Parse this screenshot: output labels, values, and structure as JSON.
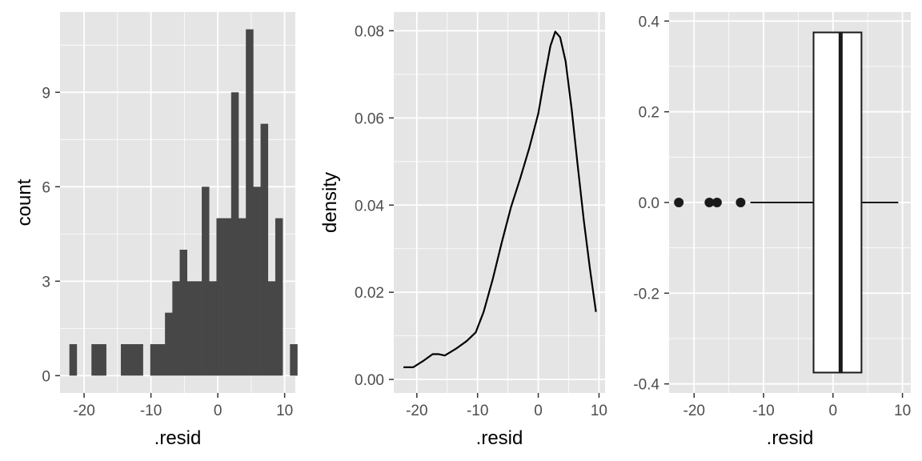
{
  "colors": {
    "panel_background": "#e5e5e5",
    "grid_line": "#ffffff",
    "bar_fill": "#474747",
    "line": "#000000",
    "box_fill": "#ffffff",
    "box_stroke": "#1a1a1a",
    "outlier": "#1a1a1a",
    "tick_text": "#4d4d4d"
  },
  "chart_data": [
    {
      "type": "bar",
      "subtype": "histogram",
      "xlabel": ".resid",
      "ylabel": "count",
      "xlim": [
        -23.6,
        11.6
      ],
      "ylim": [
        -0.55,
        11.55
      ],
      "x_ticks": [
        -20,
        -10,
        0,
        10
      ],
      "x_tick_labels": [
        "-20",
        "-10",
        "0",
        "10"
      ],
      "y_ticks": [
        0,
        3,
        6,
        9
      ],
      "y_tick_labels": [
        "0",
        "3",
        "6",
        "9"
      ],
      "grid": true,
      "bin_width": 1.1,
      "bin_edges_start": -22.2,
      "counts": [
        1,
        0,
        0,
        1,
        1,
        0,
        0,
        1,
        1,
        1,
        0,
        1,
        1,
        2,
        3,
        4,
        3,
        3,
        6,
        3,
        5,
        5,
        9,
        5,
        11,
        6,
        8,
        3,
        5,
        0,
        1
      ]
    },
    {
      "type": "line",
      "subtype": "density",
      "xlabel": ".resid",
      "ylabel": "density",
      "xlim": [
        -23.8,
        11.0
      ],
      "ylim": [
        -0.0031,
        0.0843
      ],
      "x_ticks": [
        -20,
        -10,
        0,
        10
      ],
      "x_tick_labels": [
        "-20",
        "-10",
        "0",
        "10"
      ],
      "y_ticks": [
        0,
        0.02,
        0.04,
        0.06,
        0.08
      ],
      "y_tick_labels": [
        "0.00",
        "0.02",
        "0.04",
        "0.06",
        "0.08"
      ],
      "grid": true,
      "x": [
        -22.2,
        -20.6,
        -19,
        -17.4,
        -16.4,
        -15.4,
        -13.6,
        -11.8,
        -10.3,
        -9,
        -7.5,
        -6,
        -4.5,
        -3,
        -1.5,
        0,
        1,
        2,
        2.8,
        3.6,
        4.5,
        5.5,
        6.5,
        7.5,
        8.5,
        9.5
      ],
      "y": [
        0.0028,
        0.0028,
        0.0042,
        0.0058,
        0.0058,
        0.0055,
        0.007,
        0.0088,
        0.0108,
        0.0155,
        0.023,
        0.0315,
        0.0395,
        0.046,
        0.053,
        0.061,
        0.069,
        0.0765,
        0.0798,
        0.0785,
        0.073,
        0.062,
        0.049,
        0.0365,
        0.0255,
        0.0155
      ]
    },
    {
      "type": "box",
      "xlabel": ".resid",
      "ylabel": "",
      "xlim": [
        -23.6,
        11.2
      ],
      "ylim": [
        -0.42,
        0.42
      ],
      "x_ticks": [
        -20,
        -10,
        0,
        10
      ],
      "x_tick_labels": [
        "-20",
        "-10",
        "0",
        "10"
      ],
      "y_ticks": [
        -0.4,
        -0.2,
        0,
        0.2,
        0.4
      ],
      "y_tick_labels": [
        "-0.4",
        "-0.2",
        "0.0",
        "0.2",
        "0.4"
      ],
      "grid": true,
      "box": {
        "q1": -2.8,
        "median": 1.1,
        "q3": 4.1,
        "whisker_low": -11.9,
        "whisker_high": 9.4,
        "outliers": [
          -22.2,
          -17.8,
          -16.7,
          -13.3
        ],
        "y_half_height": 0.375
      }
    }
  ]
}
